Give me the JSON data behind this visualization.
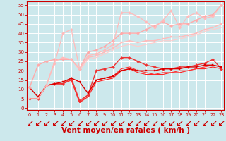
{
  "background_color": "#cce8ec",
  "grid_color": "#ffffff",
  "xlabel": "Vent moyen/en rafales ( km/h )",
  "xlabel_color": "#cc0000",
  "xlabel_fontsize": 7.5,
  "tick_color": "#cc0000",
  "x_ticks": [
    0,
    1,
    2,
    3,
    4,
    5,
    6,
    7,
    8,
    9,
    10,
    11,
    12,
    13,
    14,
    15,
    16,
    17,
    18,
    19,
    20,
    21,
    22,
    23
  ],
  "y_ticks": [
    0,
    5,
    10,
    15,
    20,
    25,
    30,
    35,
    40,
    45,
    50,
    55
  ],
  "ylim": [
    -1,
    57
  ],
  "xlim": [
    -0.3,
    23.3
  ],
  "lines": [
    {
      "x": [
        0,
        1,
        2,
        3,
        4,
        5,
        6,
        7,
        8,
        9,
        10,
        11,
        12,
        13,
        14,
        15,
        16,
        17,
        18,
        19,
        20,
        21,
        22,
        23
      ],
      "y": [
        5,
        5,
        12,
        13,
        13,
        16,
        4,
        7,
        20,
        21,
        22,
        27,
        27,
        25,
        23,
        22,
        21,
        21,
        22,
        22,
        23,
        24,
        26,
        21
      ],
      "color": "#ee3333",
      "lw": 1.0,
      "marker": "D",
      "ms": 2.0,
      "zorder": 4
    },
    {
      "x": [
        0,
        1,
        2,
        3,
        4,
        5,
        6,
        7,
        8,
        9,
        10,
        11,
        12,
        13,
        14,
        15,
        16,
        17,
        18,
        19,
        20,
        21,
        22,
        23
      ],
      "y": [
        11,
        6,
        12,
        13,
        14,
        16,
        14,
        8,
        15,
        16,
        17,
        20,
        21,
        20,
        20,
        20,
        21,
        21,
        21,
        22,
        22,
        23,
        23,
        22
      ],
      "color": "#dd0000",
      "lw": 1.0,
      "marker": "s",
      "ms": 1.8,
      "zorder": 4
    },
    {
      "x": [
        0,
        1,
        2,
        3,
        4,
        5,
        6,
        7,
        8,
        9,
        10,
        11,
        12,
        13,
        14,
        15,
        16,
        17,
        18,
        19,
        20,
        21,
        22,
        23
      ],
      "y": [
        5,
        5,
        12,
        13,
        13,
        15,
        3,
        6,
        14,
        15,
        16,
        20,
        21,
        19,
        18,
        18,
        18,
        19,
        19,
        20,
        21,
        21,
        22,
        21
      ],
      "color": "#ff2222",
      "lw": 0.8,
      "marker": null,
      "ms": 0,
      "zorder": 3
    },
    {
      "x": [
        0,
        1,
        2,
        3,
        4,
        5,
        6,
        7,
        8,
        9,
        10,
        11,
        12,
        13,
        14,
        15,
        16,
        17,
        18,
        19,
        20,
        21,
        22,
        23
      ],
      "y": [
        5,
        5,
        12,
        13,
        13,
        15,
        3,
        7,
        15,
        16,
        17,
        21,
        22,
        20,
        19,
        18,
        19,
        19,
        20,
        20,
        21,
        22,
        23,
        22
      ],
      "color": "#ff3333",
      "lw": 0.8,
      "marker": null,
      "ms": 0,
      "zorder": 3
    },
    {
      "x": [
        0,
        1,
        2,
        3,
        4,
        5,
        6,
        7,
        8,
        9,
        10,
        11,
        12,
        13,
        14,
        15,
        16,
        17,
        18,
        19,
        20,
        21,
        22,
        23
      ],
      "y": [
        11,
        23,
        25,
        26,
        26,
        26,
        21,
        30,
        31,
        33,
        36,
        40,
        40,
        40,
        42,
        44,
        46,
        44,
        45,
        45,
        47,
        49,
        50,
        55
      ],
      "color": "#ffaaaa",
      "lw": 1.0,
      "marker": "D",
      "ms": 2.0,
      "zorder": 4
    },
    {
      "x": [
        0,
        1,
        2,
        3,
        4,
        5,
        6,
        7,
        8,
        9,
        10,
        11,
        12,
        13,
        14,
        15,
        16,
        17,
        18,
        19,
        20,
        21,
        22,
        23
      ],
      "y": [
        5,
        5,
        12,
        25,
        27,
        26,
        21,
        27,
        28,
        30,
        32,
        35,
        36,
        35,
        36,
        36,
        37,
        38,
        38,
        39,
        40,
        42,
        43,
        45
      ],
      "color": "#ffbbbb",
      "lw": 1.0,
      "marker": "s",
      "ms": 1.8,
      "zorder": 4
    },
    {
      "x": [
        2,
        3,
        4,
        5,
        6,
        7,
        8,
        9,
        10,
        11,
        12,
        13,
        14,
        15,
        16,
        17,
        18,
        19,
        20,
        21,
        22,
        23
      ],
      "y": [
        12,
        24,
        40,
        42,
        21,
        28,
        29,
        31,
        34,
        51,
        51,
        49,
        46,
        43,
        47,
        52,
        43,
        49,
        51,
        48,
        49,
        55
      ],
      "color": "#ffbbbb",
      "lw": 0.9,
      "marker": "D",
      "ms": 2.0,
      "zorder": 4
    },
    {
      "x": [
        0,
        1,
        2,
        3,
        4,
        5,
        6,
        7,
        8,
        9,
        10,
        11,
        12,
        13,
        14,
        15,
        16,
        17,
        18,
        19,
        20,
        21,
        22,
        23
      ],
      "y": [
        5,
        5,
        12,
        25,
        27,
        26,
        20,
        26,
        27,
        29,
        31,
        33,
        34,
        33,
        34,
        35,
        36,
        36,
        37,
        38,
        39,
        41,
        42,
        43
      ],
      "color": "#ffcccc",
      "lw": 0.8,
      "marker": null,
      "ms": 0,
      "zorder": 3
    }
  ]
}
